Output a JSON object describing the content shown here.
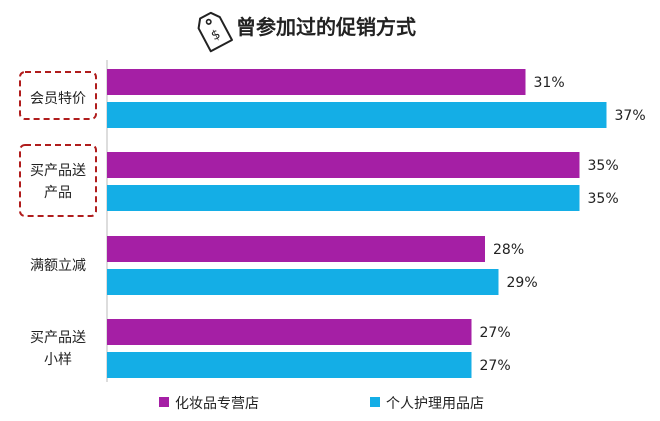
{
  "chart_data": {
    "type": "bar",
    "orientation": "horizontal",
    "title": "曾参加过的促销方式",
    "categories": [
      "会员特价",
      "买产品送产品",
      "满额立减",
      "买产品送小样"
    ],
    "category_lines": [
      [
        "会员特价"
      ],
      [
        "买产品送",
        "产品"
      ],
      [
        "满额立减"
      ],
      [
        "买产品送",
        "小样"
      ]
    ],
    "highlighted_categories": [
      0,
      1
    ],
    "series": [
      {
        "name": "化妆品专营店",
        "color": "#a51fa5",
        "values": [
          31,
          35,
          28,
          27
        ],
        "labels": [
          "31%",
          "35%",
          "28%",
          "27%"
        ]
      },
      {
        "name": "个人护理用品店",
        "color": "#14aee6",
        "values": [
          37,
          35,
          29,
          27
        ],
        "labels": [
          "37%",
          "35%",
          "29%",
          "27%"
        ]
      }
    ],
    "value_unit": "%",
    "xlim": [
      0,
      40
    ],
    "grid": false,
    "legend_position": "bottom"
  }
}
